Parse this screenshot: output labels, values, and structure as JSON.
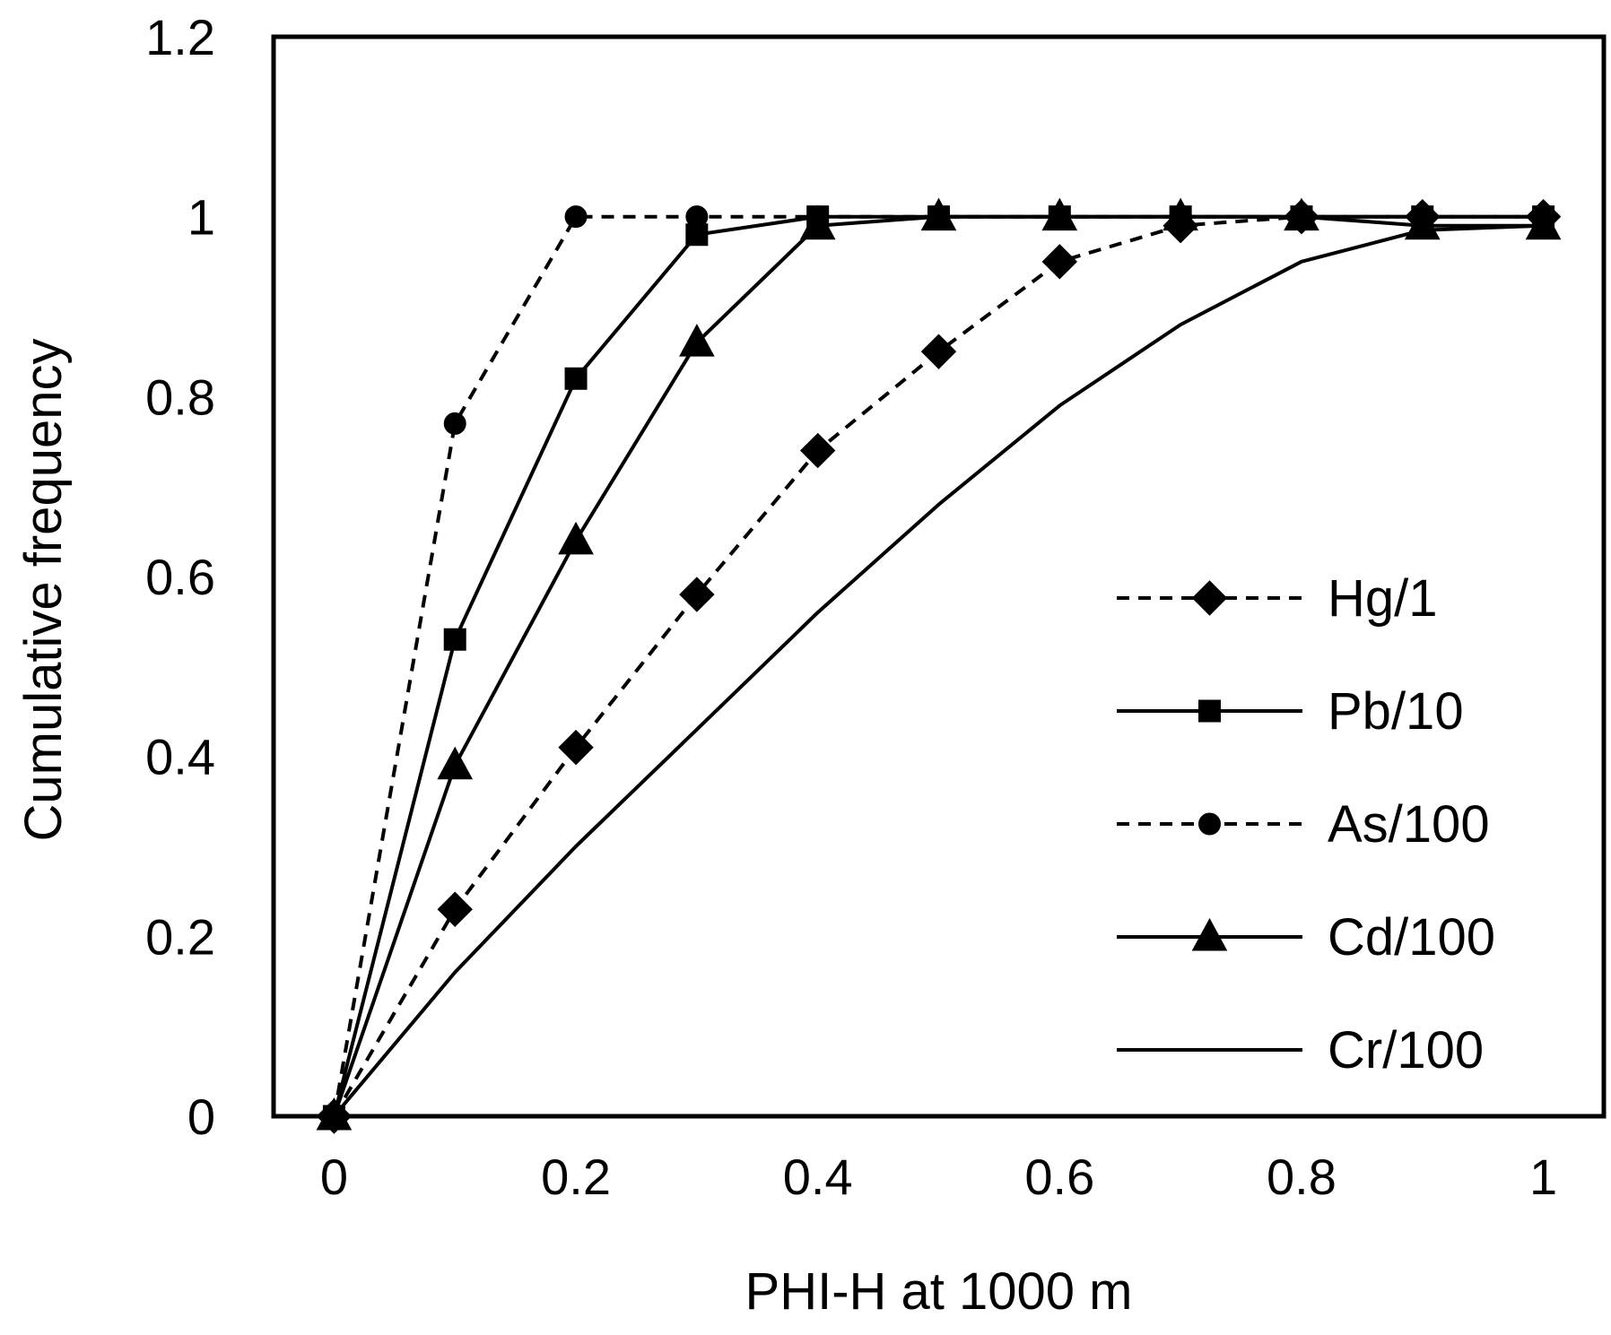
{
  "chart_data": {
    "type": "line",
    "title": "",
    "xlabel": "PHI-H at 1000 m",
    "ylabel": "Cumulative frequency",
    "xlim": [
      -0.05,
      1.05
    ],
    "ylim": [
      0,
      1.2
    ],
    "x_ticks": [
      0,
      0.2,
      0.4,
      0.6,
      0.8,
      1
    ],
    "x_tick_labels": [
      "0",
      "0.2",
      "0.4",
      "0.6",
      "0.8",
      "1"
    ],
    "y_ticks": [
      0,
      0.2,
      0.4,
      0.6,
      0.8,
      1,
      1.2
    ],
    "y_tick_labels": [
      "0",
      "0.2",
      "0.4",
      "0.6",
      "0.8",
      "1",
      "1.2"
    ],
    "grid": false,
    "legend_position": "right",
    "series": [
      {
        "name": "Hg/1",
        "line": "dashed",
        "marker": "diamond",
        "x": [
          0,
          0.1,
          0.2,
          0.3,
          0.4,
          0.5,
          0.6,
          0.7,
          0.8,
          0.9,
          1.0
        ],
        "y": [
          0,
          0.23,
          0.41,
          0.58,
          0.74,
          0.85,
          0.95,
          0.99,
          1.0,
          1.0,
          1.0
        ]
      },
      {
        "name": "Pb/10",
        "line": "solid",
        "marker": "square",
        "x": [
          0,
          0.1,
          0.2,
          0.3,
          0.4,
          0.5,
          0.6,
          0.7,
          0.8,
          0.9,
          1.0
        ],
        "y": [
          0,
          0.53,
          0.82,
          0.98,
          1.0,
          1.0,
          1.0,
          1.0,
          1.0,
          1.0,
          1.0
        ]
      },
      {
        "name": "As/100",
        "line": "dashed",
        "marker": "circle",
        "x": [
          0,
          0.1,
          0.2,
          0.3,
          0.4,
          0.5,
          0.6,
          0.7,
          0.8,
          0.9,
          1.0
        ],
        "y": [
          0,
          0.77,
          1.0,
          1.0,
          1.0,
          1.0,
          1.0,
          1.0,
          1.0,
          1.0,
          1.0
        ]
      },
      {
        "name": "Cd/100",
        "line": "solid",
        "marker": "triangle",
        "x": [
          0,
          0.1,
          0.2,
          0.3,
          0.4,
          0.5,
          0.6,
          0.7,
          0.8,
          0.9,
          1.0
        ],
        "y": [
          0,
          0.39,
          0.64,
          0.86,
          0.99,
          1.0,
          1.0,
          1.0,
          1.0,
          0.99,
          0.99
        ]
      },
      {
        "name": "Cr/100",
        "line": "solid",
        "marker": "none",
        "x": [
          0,
          0.1,
          0.2,
          0.3,
          0.4,
          0.5,
          0.6,
          0.7,
          0.8,
          0.9,
          1.0
        ],
        "y": [
          0,
          0.16,
          0.3,
          0.43,
          0.56,
          0.68,
          0.79,
          0.88,
          0.95,
          0.985,
          0.99
        ]
      }
    ]
  }
}
